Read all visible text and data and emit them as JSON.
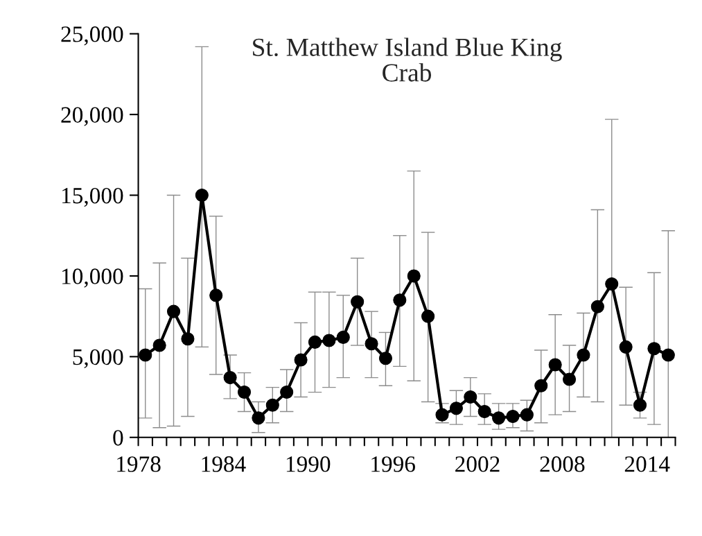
{
  "chart_data": {
    "type": "line",
    "title": "St. Matthew Island Blue King\nCrab",
    "x": [
      1978,
      1979,
      1980,
      1981,
      1982,
      1983,
      1984,
      1985,
      1986,
      1987,
      1988,
      1989,
      1990,
      1991,
      1992,
      1993,
      1994,
      1995,
      1996,
      1997,
      1998,
      1999,
      2000,
      2001,
      2002,
      2003,
      2004,
      2005,
      2006,
      2007,
      2008,
      2009,
      2010,
      2011,
      2012,
      2013,
      2014,
      2015
    ],
    "series": [
      {
        "color": "#000000",
        "values": [
          5100,
          5700,
          7800,
          6100,
          15000,
          8800,
          3700,
          2800,
          1200,
          2000,
          2800,
          4800,
          5900,
          6000,
          6200,
          8400,
          5800,
          4900,
          8500,
          10000,
          7500,
          1400,
          1800,
          2500,
          1600,
          1200,
          1300,
          1400,
          3200,
          4500,
          3600,
          5100,
          8100,
          9500,
          5600,
          2000,
          5500,
          5100
        ],
        "errors": [
          [
            1200,
            9200
          ],
          [
            600,
            10800
          ],
          [
            700,
            15000
          ],
          [
            1300,
            11100
          ],
          [
            5600,
            24200
          ],
          [
            3900,
            13700
          ],
          [
            2400,
            5100
          ],
          [
            1600,
            4000
          ],
          [
            300,
            2200
          ],
          [
            900,
            3100
          ],
          [
            1600,
            4200
          ],
          [
            2500,
            7100
          ],
          [
            2800,
            9000
          ],
          [
            3100,
            9000
          ],
          [
            3700,
            8800
          ],
          [
            5700,
            11100
          ],
          [
            3700,
            7800
          ],
          [
            3200,
            6500
          ],
          [
            4400,
            12500
          ],
          [
            3500,
            16500
          ],
          [
            2200,
            12700
          ],
          [
            900,
            2100
          ],
          [
            800,
            2900
          ],
          [
            1300,
            3700
          ],
          [
            800,
            2700
          ],
          [
            500,
            2100
          ],
          [
            600,
            2100
          ],
          [
            400,
            2300
          ],
          [
            900,
            5400
          ],
          [
            1400,
            7600
          ],
          [
            1600,
            5700
          ],
          [
            2500,
            7700
          ],
          [
            2200,
            14100
          ],
          [
            0,
            19700
          ],
          [
            2000,
            9300
          ],
          [
            1200,
            2800
          ],
          [
            800,
            10200
          ],
          [
            0,
            12800
          ]
        ]
      }
    ],
    "marker": "circle",
    "line_style": "solid",
    "grid": false,
    "xlim": [
      1977.5,
      2015.5
    ],
    "xticks": [
      {
        "value": 1977.5,
        "label": "1978"
      },
      {
        "value": 1978.5,
        "label": null
      },
      {
        "value": 1979.5,
        "label": null
      },
      {
        "value": 1980.5,
        "label": null
      },
      {
        "value": 1981.5,
        "label": null
      },
      {
        "value": 1982.5,
        "label": null
      },
      {
        "value": 1983.5,
        "label": "1984"
      },
      {
        "value": 1984.5,
        "label": null
      },
      {
        "value": 1985.5,
        "label": null
      },
      {
        "value": 1986.5,
        "label": null
      },
      {
        "value": 1987.5,
        "label": null
      },
      {
        "value": 1988.5,
        "label": null
      },
      {
        "value": 1989.5,
        "label": "1990"
      },
      {
        "value": 1990.5,
        "label": null
      },
      {
        "value": 1991.5,
        "label": null
      },
      {
        "value": 1992.5,
        "label": null
      },
      {
        "value": 1993.5,
        "label": null
      },
      {
        "value": 1994.5,
        "label": null
      },
      {
        "value": 1995.5,
        "label": "1996"
      },
      {
        "value": 1996.5,
        "label": null
      },
      {
        "value": 1997.5,
        "label": null
      },
      {
        "value": 1998.5,
        "label": null
      },
      {
        "value": 1999.5,
        "label": null
      },
      {
        "value": 2000.5,
        "label": null
      },
      {
        "value": 2001.5,
        "label": "2002"
      },
      {
        "value": 2002.5,
        "label": null
      },
      {
        "value": 2003.5,
        "label": null
      },
      {
        "value": 2004.5,
        "label": null
      },
      {
        "value": 2005.5,
        "label": null
      },
      {
        "value": 2006.5,
        "label": null
      },
      {
        "value": 2007.5,
        "label": "2008"
      },
      {
        "value": 2008.5,
        "label": null
      },
      {
        "value": 2009.5,
        "label": null
      },
      {
        "value": 2010.5,
        "label": null
      },
      {
        "value": 2011.5,
        "label": null
      },
      {
        "value": 2012.5,
        "label": null
      },
      {
        "value": 2013.5,
        "label": "2014"
      },
      {
        "value": 2014.5,
        "label": null
      },
      {
        "value": 2015.5,
        "label": null
      }
    ],
    "ylim": [
      0,
      25000
    ],
    "yticks": [
      0,
      {
        "value": 5000,
        "label": "5,000"
      },
      {
        "value": 10000,
        "label": "10,000"
      },
      {
        "value": 15000,
        "label": "15,000"
      },
      {
        "value": 20000,
        "label": "20,000"
      },
      {
        "value": 25000,
        "label": "25,000"
      }
    ]
  }
}
